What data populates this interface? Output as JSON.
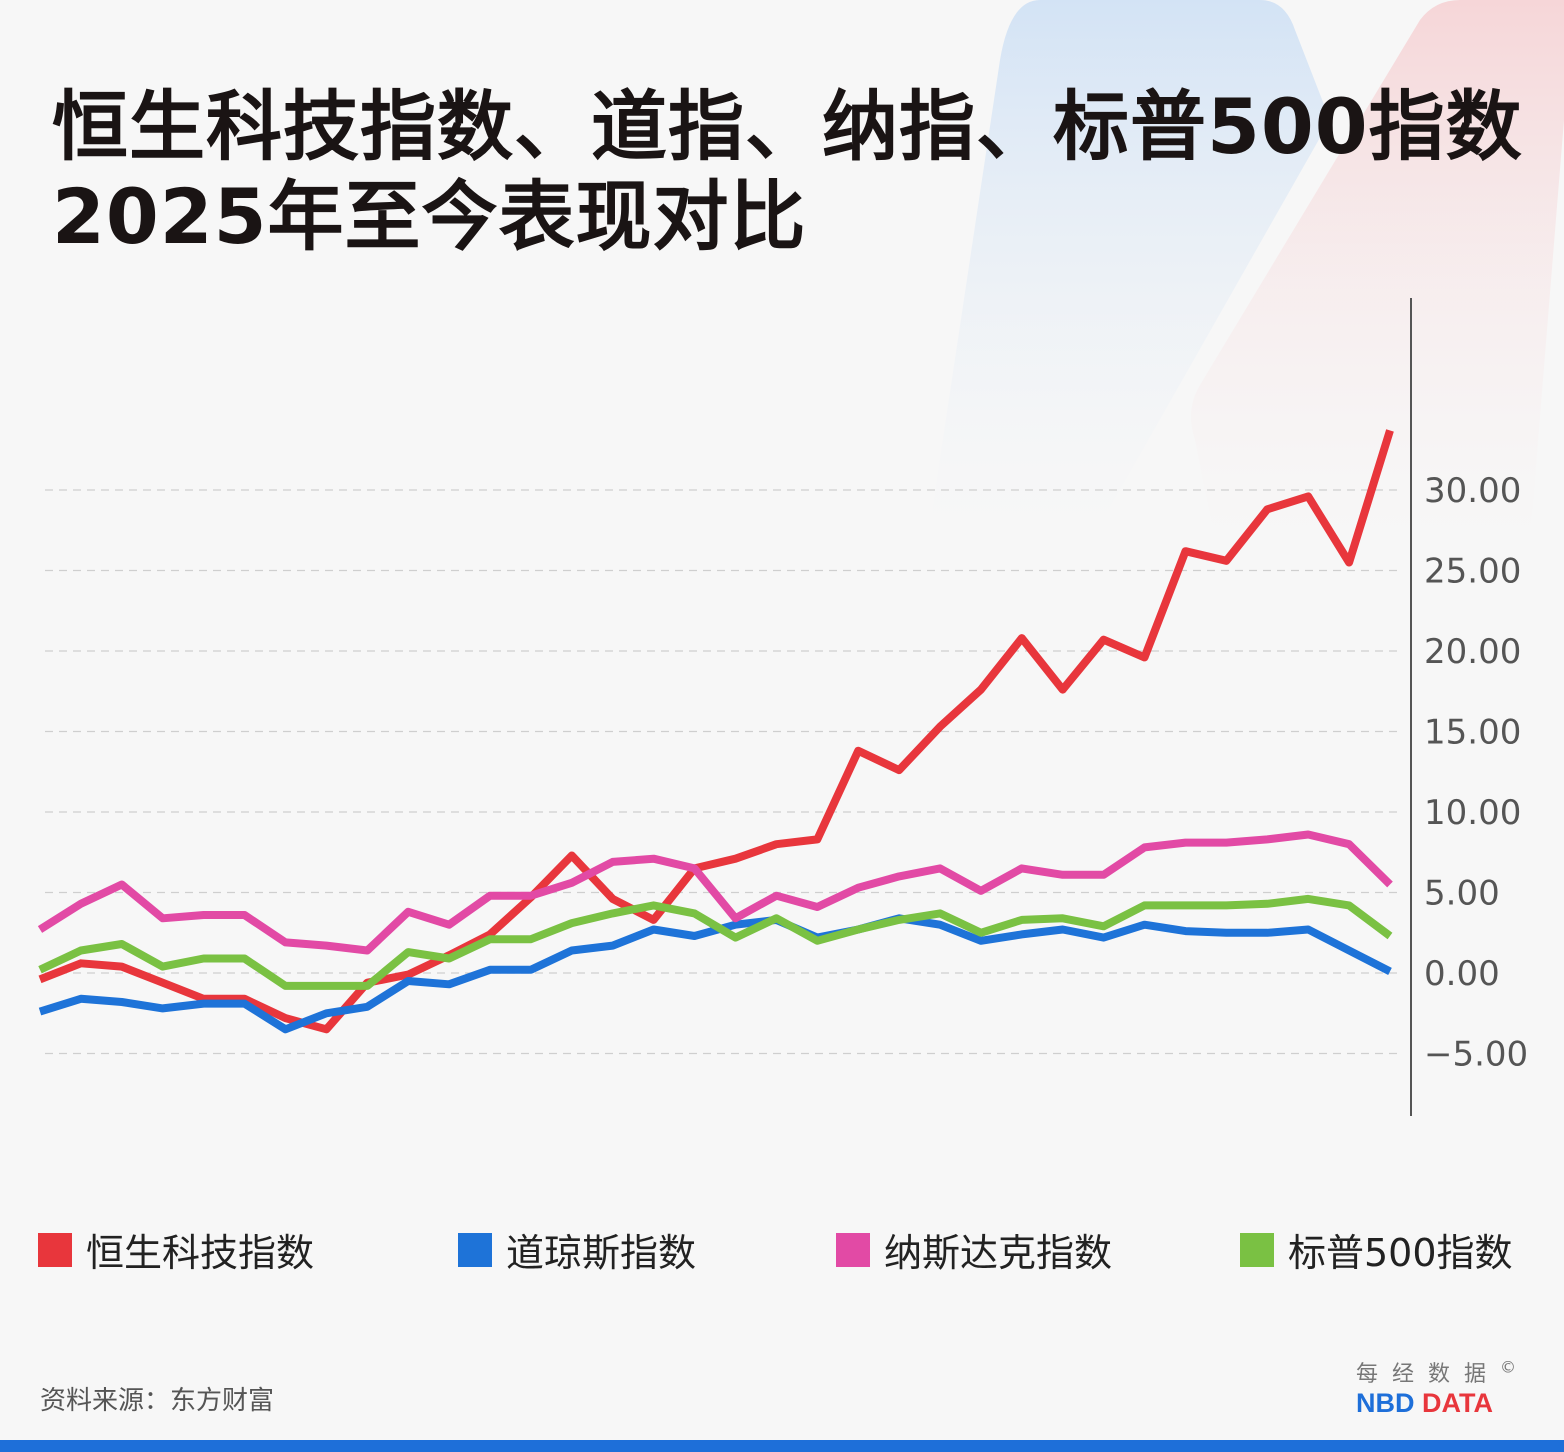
{
  "title_lines": [
    "恒生科技指数、道指、纳指、标普500指数",
    "2025年至今表现对比"
  ],
  "source": "资料来源：东方财富",
  "logo": {
    "cn": "每经数据",
    "en_a": "NBD",
    "en_b": "DATA",
    "copyright": "©"
  },
  "colors": {
    "background": "#f7f7f7",
    "bottom_bar": "#1e6fd9",
    "logo_blue": "#1e6fd9",
    "logo_red": "#e8363c"
  },
  "chart_data": {
    "type": "line",
    "title": "恒生科技指数、道指、纳指、标普500指数2025年至今表现对比",
    "xlabel": "",
    "ylabel": "",
    "ylim": [
      -7.5,
      40
    ],
    "yticks": [
      -5,
      0,
      5,
      10,
      15,
      20,
      25,
      30
    ],
    "ytick_labels": [
      "−5.00",
      "0.00",
      "5.00",
      "10.00",
      "15.00",
      "20.00",
      "25.00",
      "30.00"
    ],
    "y_axis_position": "right",
    "grid": "horizontal dashed",
    "legend_position": "bottom",
    "series": [
      {
        "name": "恒生科技指数",
        "color": "#e8363c",
        "values": [
          -0.4,
          0.6,
          0.4,
          -0.6,
          -1.6,
          -1.6,
          -2.8,
          -3.5,
          -0.6,
          -0.1,
          1.1,
          2.4,
          4.7,
          7.3,
          4.6,
          3.3,
          6.5,
          7.1,
          8.0,
          8.3,
          13.8,
          12.6,
          15.3,
          17.6,
          20.8,
          17.6,
          20.7,
          19.6,
          26.2,
          25.6,
          28.8,
          29.6,
          25.5,
          33.7
        ]
      },
      {
        "name": "道琼斯指数",
        "color": "#1e73d8",
        "values": [
          -2.4,
          -1.6,
          -1.8,
          -2.2,
          -1.9,
          -1.9,
          -3.5,
          -2.5,
          -2.1,
          -0.5,
          -0.7,
          0.2,
          0.2,
          1.4,
          1.7,
          2.7,
          2.3,
          3.0,
          3.3,
          2.2,
          2.7,
          3.4,
          3.0,
          2.0,
          2.4,
          2.7,
          2.2,
          3.0,
          2.6,
          2.5,
          2.5,
          2.7,
          1.4,
          0.1
        ]
      },
      {
        "name": "纳斯达克指数",
        "color": "#e24aa5",
        "values": [
          2.7,
          4.3,
          5.5,
          3.4,
          3.6,
          3.6,
          1.9,
          1.7,
          1.4,
          3.8,
          3.0,
          4.8,
          4.8,
          5.6,
          6.9,
          7.1,
          6.5,
          3.4,
          4.8,
          4.1,
          5.3,
          6.0,
          6.5,
          5.1,
          6.5,
          6.1,
          6.1,
          7.8,
          8.1,
          8.1,
          8.3,
          8.6,
          8.0,
          5.5
        ]
      },
      {
        "name": "标普500指数",
        "color": "#7ac143",
        "values": [
          0.2,
          1.4,
          1.8,
          0.4,
          0.9,
          0.9,
          -0.8,
          -0.8,
          -0.8,
          1.3,
          0.9,
          2.1,
          2.1,
          3.1,
          3.7,
          4.2,
          3.7,
          2.2,
          3.4,
          2.0,
          2.7,
          3.3,
          3.7,
          2.5,
          3.3,
          3.4,
          2.9,
          4.2,
          4.2,
          4.2,
          4.3,
          4.6,
          4.2,
          2.3
        ]
      }
    ]
  }
}
